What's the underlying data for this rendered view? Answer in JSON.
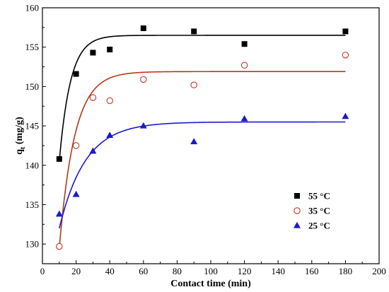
{
  "chart_data": {
    "type": "scatter",
    "xlabel": "Contact time (min)",
    "ylabel_main": "q",
    "ylabel_sub": "t",
    "ylabel_rest": " (mg/g)",
    "xlim": [
      0,
      200
    ],
    "ylim": [
      127.5,
      160
    ],
    "x_ticks": [
      0,
      20,
      40,
      60,
      80,
      100,
      120,
      140,
      160,
      180,
      200
    ],
    "y_ticks": [
      130,
      135,
      140,
      145,
      150,
      155,
      160
    ],
    "grid": false,
    "legend_position": "bottom-right",
    "series": [
      {
        "name": "55 °C",
        "marker": "square-filled",
        "color": "#000000",
        "x": [
          10,
          20,
          30,
          40,
          60,
          90,
          120,
          180
        ],
        "y": [
          140.8,
          151.6,
          154.3,
          154.7,
          157.4,
          157.0,
          155.4,
          157.0
        ],
        "fit": {
          "qe": 156.5,
          "q0": 140.5,
          "k": 0.15
        }
      },
      {
        "name": "35 °C",
        "marker": "circle-open",
        "color": "#cc3322",
        "fit_color": "#b03a1a",
        "x": [
          10,
          20,
          30,
          40,
          60,
          90,
          120,
          180
        ],
        "y": [
          129.7,
          142.5,
          148.6,
          148.2,
          150.9,
          150.2,
          152.7,
          154.0
        ],
        "fit": {
          "qe": 151.9,
          "q0": 129.5,
          "k": 0.11
        }
      },
      {
        "name": "25 °C",
        "marker": "triangle-filled",
        "color": "#1a1acc",
        "x": [
          10,
          20,
          30,
          40,
          60,
          90,
          120,
          180
        ],
        "y": [
          133.8,
          136.3,
          141.8,
          143.8,
          145.0,
          143.0,
          145.9,
          146.2
        ],
        "fit": {
          "qe": 145.5,
          "q0": 132.0,
          "k": 0.065
        }
      }
    ]
  }
}
